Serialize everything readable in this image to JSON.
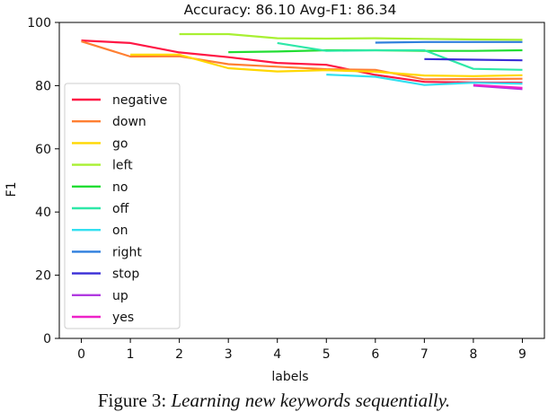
{
  "chart_data": {
    "type": "line",
    "title": "Accuracy: 86.10  Avg-F1: 86.34",
    "xlabel": "labels",
    "ylabel": "F1",
    "xlim": [
      -0.45,
      9.45
    ],
    "ylim": [
      0,
      100
    ],
    "xticks": [
      0,
      1,
      2,
      3,
      4,
      5,
      6,
      7,
      8,
      9
    ],
    "yticks": [
      0,
      20,
      40,
      60,
      80,
      100
    ],
    "grid": false,
    "legend_position": "center-left",
    "series": [
      {
        "name": "negative",
        "color": "#ff1744",
        "x": [
          0,
          1,
          2,
          3,
          4,
          5,
          6,
          7,
          8,
          9
        ],
        "y": [
          94.3,
          93.5,
          90.5,
          89.0,
          87.2,
          86.6,
          83.4,
          81.2,
          81.0,
          80.9
        ]
      },
      {
        "name": "down",
        "color": "#ff7f32",
        "x": [
          0,
          1,
          2,
          3,
          4,
          5,
          6,
          7,
          8,
          9
        ],
        "y": [
          94.0,
          89.2,
          89.3,
          86.8,
          86.0,
          85.2,
          85.0,
          82.0,
          82.1,
          82.2
        ]
      },
      {
        "name": "go",
        "color": "#ffd700",
        "x": [
          1,
          2,
          3,
          4,
          5,
          6,
          7,
          8,
          9
        ],
        "y": [
          89.8,
          89.8,
          85.5,
          84.5,
          84.9,
          84.4,
          83.2,
          83.0,
          83.3
        ]
      },
      {
        "name": "left",
        "color": "#a8f032",
        "x": [
          2,
          3,
          4,
          5,
          6,
          7,
          8,
          9
        ],
        "y": [
          96.3,
          96.3,
          95.0,
          94.9,
          95.0,
          94.8,
          94.6,
          94.5
        ]
      },
      {
        "name": "no",
        "color": "#22dd33",
        "x": [
          3,
          4,
          5,
          6,
          7,
          8,
          9
        ],
        "y": [
          90.6,
          90.8,
          91.2,
          91.2,
          91.0,
          91.0,
          91.2
        ]
      },
      {
        "name": "off",
        "color": "#2ee8a8",
        "x": [
          4,
          5,
          6,
          7,
          8,
          9
        ],
        "y": [
          93.5,
          91.0,
          91.2,
          91.2,
          85.3,
          85.0
        ]
      },
      {
        "name": "on",
        "color": "#33e0f0",
        "x": [
          5,
          6,
          7,
          8,
          9
        ],
        "y": [
          83.5,
          82.8,
          80.2,
          80.9,
          80.6
        ]
      },
      {
        "name": "right",
        "color": "#2f7fdd",
        "x": [
          6,
          7,
          8,
          9
        ],
        "y": [
          93.6,
          93.8,
          93.8,
          93.8
        ]
      },
      {
        "name": "stop",
        "color": "#3a2ed6",
        "x": [
          7,
          8,
          9
        ],
        "y": [
          88.4,
          88.2,
          88.0
        ]
      },
      {
        "name": "up",
        "color": "#b03ae0",
        "x": [
          8,
          9
        ],
        "y": [
          80.0,
          78.9
        ]
      },
      {
        "name": "yes",
        "color": "#ee22c8",
        "x": [
          8,
          9
        ],
        "y": [
          80.2,
          79.3
        ]
      }
    ]
  },
  "caption": {
    "prefix": "Figure 3: ",
    "text": "Learning new keywords sequentially."
  }
}
